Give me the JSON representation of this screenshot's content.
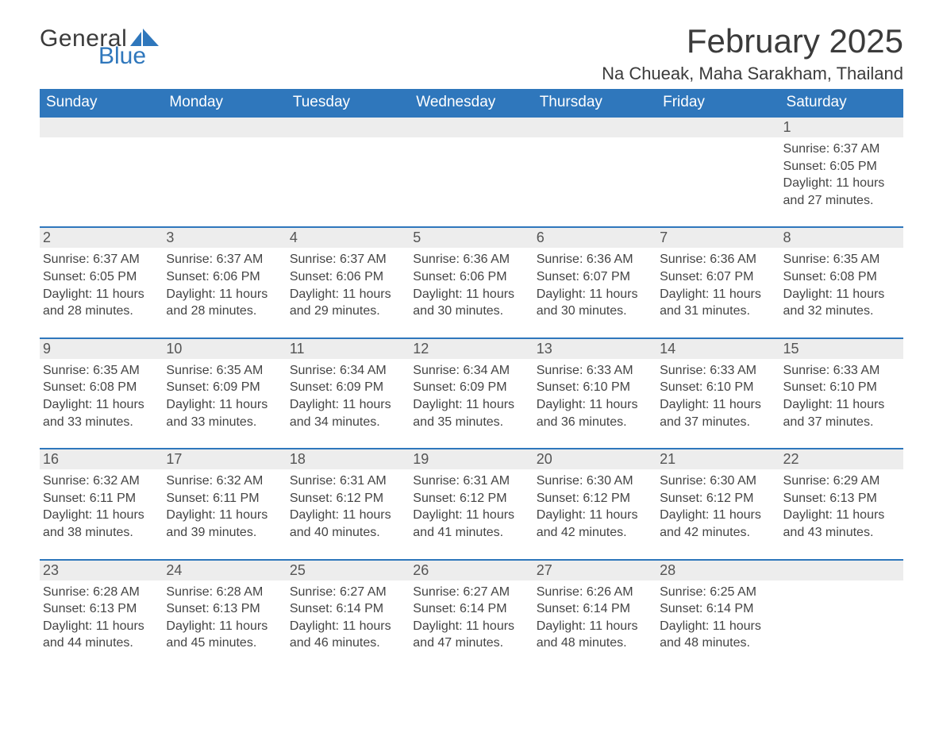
{
  "brand": {
    "part1": "General",
    "part2": "Blue",
    "generalColor": "#3b3b3b",
    "blueColor": "#2f77bc"
  },
  "title": "February 2025",
  "subtitle": "Na Chueak, Maha Sarakham, Thailand",
  "colors": {
    "headerBg": "#2f77bc",
    "headerText": "#ffffff",
    "dayStripBg": "#ededed",
    "bodyText": "#444444",
    "separator": "#2f77bc",
    "pageBg": "#ffffff"
  },
  "typography": {
    "titleFontSize": 42,
    "subtitleFontSize": 22,
    "headerFontSize": 19,
    "dayNumFontSize": 18,
    "cellFontSize": 16
  },
  "weekdays": [
    "Sunday",
    "Monday",
    "Tuesday",
    "Wednesday",
    "Thursday",
    "Friday",
    "Saturday"
  ],
  "weeks": [
    [
      null,
      null,
      null,
      null,
      null,
      null,
      {
        "day": 1,
        "sunrise": "6:37 AM",
        "sunset": "6:05 PM",
        "daylight": "11 hours and 27 minutes."
      }
    ],
    [
      {
        "day": 2,
        "sunrise": "6:37 AM",
        "sunset": "6:05 PM",
        "daylight": "11 hours and 28 minutes."
      },
      {
        "day": 3,
        "sunrise": "6:37 AM",
        "sunset": "6:06 PM",
        "daylight": "11 hours and 28 minutes."
      },
      {
        "day": 4,
        "sunrise": "6:37 AM",
        "sunset": "6:06 PM",
        "daylight": "11 hours and 29 minutes."
      },
      {
        "day": 5,
        "sunrise": "6:36 AM",
        "sunset": "6:06 PM",
        "daylight": "11 hours and 30 minutes."
      },
      {
        "day": 6,
        "sunrise": "6:36 AM",
        "sunset": "6:07 PM",
        "daylight": "11 hours and 30 minutes."
      },
      {
        "day": 7,
        "sunrise": "6:36 AM",
        "sunset": "6:07 PM",
        "daylight": "11 hours and 31 minutes."
      },
      {
        "day": 8,
        "sunrise": "6:35 AM",
        "sunset": "6:08 PM",
        "daylight": "11 hours and 32 minutes."
      }
    ],
    [
      {
        "day": 9,
        "sunrise": "6:35 AM",
        "sunset": "6:08 PM",
        "daylight": "11 hours and 33 minutes."
      },
      {
        "day": 10,
        "sunrise": "6:35 AM",
        "sunset": "6:09 PM",
        "daylight": "11 hours and 33 minutes."
      },
      {
        "day": 11,
        "sunrise": "6:34 AM",
        "sunset": "6:09 PM",
        "daylight": "11 hours and 34 minutes."
      },
      {
        "day": 12,
        "sunrise": "6:34 AM",
        "sunset": "6:09 PM",
        "daylight": "11 hours and 35 minutes."
      },
      {
        "day": 13,
        "sunrise": "6:33 AM",
        "sunset": "6:10 PM",
        "daylight": "11 hours and 36 minutes."
      },
      {
        "day": 14,
        "sunrise": "6:33 AM",
        "sunset": "6:10 PM",
        "daylight": "11 hours and 37 minutes."
      },
      {
        "day": 15,
        "sunrise": "6:33 AM",
        "sunset": "6:10 PM",
        "daylight": "11 hours and 37 minutes."
      }
    ],
    [
      {
        "day": 16,
        "sunrise": "6:32 AM",
        "sunset": "6:11 PM",
        "daylight": "11 hours and 38 minutes."
      },
      {
        "day": 17,
        "sunrise": "6:32 AM",
        "sunset": "6:11 PM",
        "daylight": "11 hours and 39 minutes."
      },
      {
        "day": 18,
        "sunrise": "6:31 AM",
        "sunset": "6:12 PM",
        "daylight": "11 hours and 40 minutes."
      },
      {
        "day": 19,
        "sunrise": "6:31 AM",
        "sunset": "6:12 PM",
        "daylight": "11 hours and 41 minutes."
      },
      {
        "day": 20,
        "sunrise": "6:30 AM",
        "sunset": "6:12 PM",
        "daylight": "11 hours and 42 minutes."
      },
      {
        "day": 21,
        "sunrise": "6:30 AM",
        "sunset": "6:12 PM",
        "daylight": "11 hours and 42 minutes."
      },
      {
        "day": 22,
        "sunrise": "6:29 AM",
        "sunset": "6:13 PM",
        "daylight": "11 hours and 43 minutes."
      }
    ],
    [
      {
        "day": 23,
        "sunrise": "6:28 AM",
        "sunset": "6:13 PM",
        "daylight": "11 hours and 44 minutes."
      },
      {
        "day": 24,
        "sunrise": "6:28 AM",
        "sunset": "6:13 PM",
        "daylight": "11 hours and 45 minutes."
      },
      {
        "day": 25,
        "sunrise": "6:27 AM",
        "sunset": "6:14 PM",
        "daylight": "11 hours and 46 minutes."
      },
      {
        "day": 26,
        "sunrise": "6:27 AM",
        "sunset": "6:14 PM",
        "daylight": "11 hours and 47 minutes."
      },
      {
        "day": 27,
        "sunrise": "6:26 AM",
        "sunset": "6:14 PM",
        "daylight": "11 hours and 48 minutes."
      },
      {
        "day": 28,
        "sunrise": "6:25 AM",
        "sunset": "6:14 PM",
        "daylight": "11 hours and 48 minutes."
      },
      null
    ]
  ],
  "labels": {
    "sunrise": "Sunrise: ",
    "sunset": "Sunset: ",
    "daylight": "Daylight: "
  }
}
